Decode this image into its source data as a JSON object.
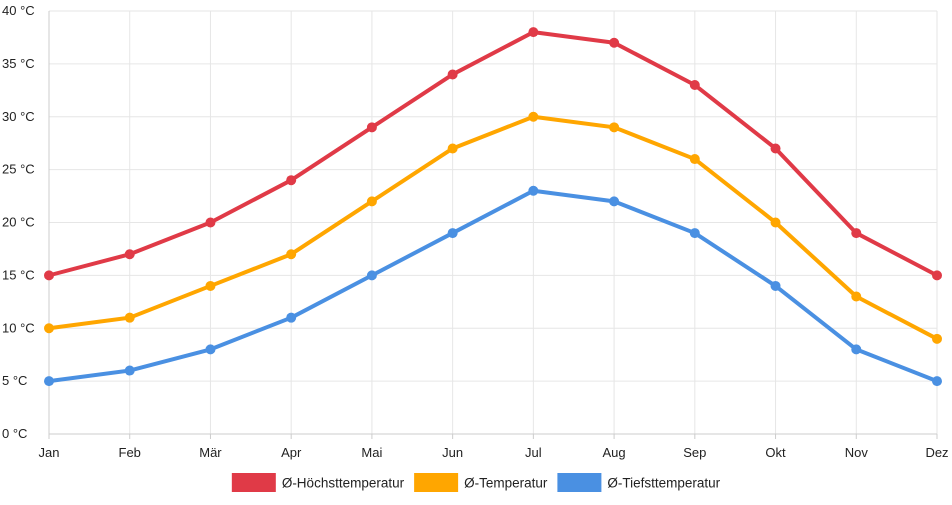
{
  "chart_data": {
    "type": "line",
    "title": "",
    "xlabel": "",
    "ylabel": "",
    "categories": [
      "Jan",
      "Feb",
      "Mär",
      "Apr",
      "Mai",
      "Jun",
      "Jul",
      "Aug",
      "Sep",
      "Okt",
      "Nov",
      "Dez"
    ],
    "ylim": [
      0,
      40
    ],
    "y_ticks": [
      0,
      5,
      10,
      15,
      20,
      25,
      30,
      35,
      40
    ],
    "y_unit": " °C",
    "grid": true,
    "legend_position": "bottom",
    "series": [
      {
        "name": "Ø-Höchsttemperatur",
        "color": "#e03a47",
        "values": [
          15,
          17,
          20,
          24,
          29,
          34,
          38,
          37,
          33,
          27,
          19,
          15
        ]
      },
      {
        "name": "Ø-Temperatur",
        "color": "#ffa600",
        "values": [
          10,
          11,
          14,
          17,
          22,
          27,
          30,
          29,
          26,
          20,
          13,
          9
        ]
      },
      {
        "name": "Ø-Tiefsttemperatur",
        "color": "#4a90e2",
        "values": [
          5,
          6,
          8,
          11,
          15,
          19,
          23,
          22,
          19,
          14,
          8,
          5
        ]
      }
    ]
  }
}
